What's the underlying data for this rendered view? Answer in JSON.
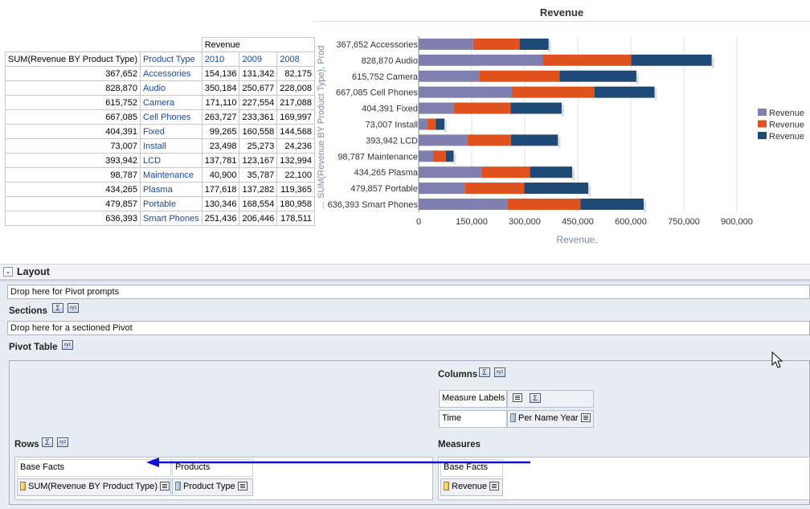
{
  "table": {
    "measure_group": "Revenue",
    "row_headers": [
      "SUM(Revenue BY Product Type)",
      "Product Type"
    ],
    "years": [
      "2010",
      "2009",
      "2008"
    ],
    "rows": [
      {
        "sum": "367,652",
        "type": "Accessories",
        "y2010": "154,136",
        "y2009": "131,342",
        "y2008": "82,175"
      },
      {
        "sum": "828,870",
        "type": "Audio",
        "y2010": "350,184",
        "y2009": "250,677",
        "y2008": "228,008"
      },
      {
        "sum": "615,752",
        "type": "Camera",
        "y2010": "171,110",
        "y2009": "227,554",
        "y2008": "217,088"
      },
      {
        "sum": "667,085",
        "type": "Cell Phones",
        "y2010": "263,727",
        "y2009": "233,361",
        "y2008": "169,997"
      },
      {
        "sum": "404,391",
        "type": "Fixed",
        "y2010": "99,265",
        "y2009": "160,558",
        "y2008": "144,568"
      },
      {
        "sum": "73,007",
        "type": "Install",
        "y2010": "23,498",
        "y2009": "25,273",
        "y2008": "24,236"
      },
      {
        "sum": "393,942",
        "type": "LCD",
        "y2010": "137,781",
        "y2009": "123,167",
        "y2008": "132,994"
      },
      {
        "sum": "98,787",
        "type": "Maintenance",
        "y2010": "40,900",
        "y2009": "35,787",
        "y2008": "22,100"
      },
      {
        "sum": "434,265",
        "type": "Plasma",
        "y2010": "177,618",
        "y2009": "137,282",
        "y2008": "119,365"
      },
      {
        "sum": "479,857",
        "type": "Portable",
        "y2010": "130,346",
        "y2009": "168,554",
        "y2008": "180,958"
      },
      {
        "sum": "636,393",
        "type": "Smart Phones",
        "y2010": "251,436",
        "y2009": "206,446",
        "y2008": "178,511"
      }
    ]
  },
  "chart_data": {
    "type": "bar",
    "orientation": "horizontal",
    "stacked": true,
    "title": "Revenue",
    "xlabel": "Revenue,",
    "ylabel": "SUM(Revenue BY Product Type), Prod",
    "ylabel_prefix": "...",
    "xlim": [
      0,
      900000
    ],
    "xticks": [
      "0",
      "150,000",
      "300,000",
      "450,000",
      "600,000",
      "750,000",
      "900,000"
    ],
    "categories": [
      "367,652 Accessories",
      "828,870 Audio",
      "615,752 Camera",
      "667,085 Cell Phones",
      "404,391 Fixed",
      "73,007 Install",
      "393,942 LCD",
      "98,787 Maintenance",
      "434,265 Plasma",
      "479,857 Portable",
      "636,393 Smart Phones"
    ],
    "series": [
      {
        "name": "Revenue",
        "color": "#8080b0",
        "values": [
          154136,
          350184,
          171110,
          263727,
          99265,
          23498,
          137781,
          40900,
          177618,
          130346,
          251436
        ]
      },
      {
        "name": "Revenue",
        "color": "#e0531e",
        "values": [
          131342,
          250677,
          227554,
          233361,
          160558,
          25273,
          123167,
          35787,
          137282,
          168554,
          206446
        ]
      },
      {
        "name": "Revenue",
        "color": "#1f4a78",
        "values": [
          82175,
          228008,
          217088,
          169997,
          144568,
          24236,
          132994,
          22100,
          119365,
          180958,
          178511
        ]
      }
    ],
    "grid": true,
    "legend": "right"
  },
  "layout": {
    "header": "Layout",
    "pivot_prompts_drop": "Drop here for Pivot prompts",
    "sections_label": "Sections",
    "sections_drop": "Drop here for a sectioned Pivot",
    "pivot_table_label": "Pivot Table",
    "columns_label": "Columns",
    "rows_label": "Rows",
    "measures_label": "Measures",
    "columns": [
      {
        "label": "Measure Labels"
      },
      {
        "label": "Time",
        "value": "Per Name Year"
      }
    ],
    "rows_header": [
      "Base Facts",
      "Products"
    ],
    "rows_items": [
      "SUM(Revenue BY Product Type)",
      "Product Type"
    ],
    "measures_header": "Base Facts",
    "measures_item": "Revenue",
    "sigma": "Σ",
    "xyz": "xyz"
  }
}
